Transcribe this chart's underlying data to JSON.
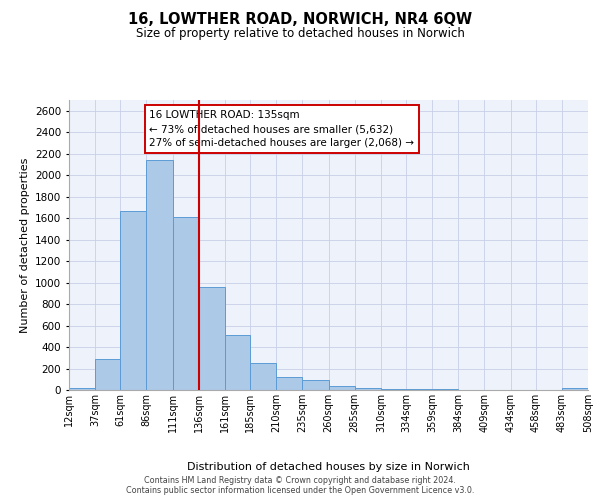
{
  "title": "16, LOWTHER ROAD, NORWICH, NR4 6QW",
  "subtitle": "Size of property relative to detached houses in Norwich",
  "xlabel": "Distribution of detached houses by size in Norwich",
  "ylabel": "Number of detached properties",
  "bar_color": "#adc9e8",
  "bar_edge_color": "#5b9bd5",
  "background_color": "#eef2fa",
  "grid_color": "#c8d0e8",
  "vline_color": "#cc0000",
  "annotation_title": "16 LOWTHER ROAD: 135sqm",
  "annotation_line1": "← 73% of detached houses are smaller (5,632)",
  "annotation_line2": "27% of semi-detached houses are larger (2,068) →",
  "annotation_box_color": "#ffffff",
  "annotation_box_edge_color": "#cc0000",
  "bin_edges": [
    12,
    37,
    61,
    86,
    111,
    136,
    161,
    185,
    210,
    235,
    260,
    285,
    310,
    334,
    359,
    384,
    409,
    434,
    458,
    483,
    508
  ],
  "bin_labels": [
    "12sqm",
    "37sqm",
    "61sqm",
    "86sqm",
    "111sqm",
    "136sqm",
    "161sqm",
    "185sqm",
    "210sqm",
    "235sqm",
    "260sqm",
    "285sqm",
    "310sqm",
    "334sqm",
    "359sqm",
    "384sqm",
    "409sqm",
    "434sqm",
    "458sqm",
    "483sqm",
    "508sqm"
  ],
  "bar_heights": [
    20,
    290,
    1670,
    2140,
    1610,
    960,
    510,
    250,
    120,
    95,
    35,
    22,
    12,
    8,
    5,
    4,
    3,
    3,
    0,
    15
  ],
  "vline_x": 136,
  "ylim": [
    0,
    2700
  ],
  "yticks": [
    0,
    200,
    400,
    600,
    800,
    1000,
    1200,
    1400,
    1600,
    1800,
    2000,
    2200,
    2400,
    2600
  ],
  "footer_line1": "Contains HM Land Registry data © Crown copyright and database right 2024.",
  "footer_line2": "Contains public sector information licensed under the Open Government Licence v3.0."
}
